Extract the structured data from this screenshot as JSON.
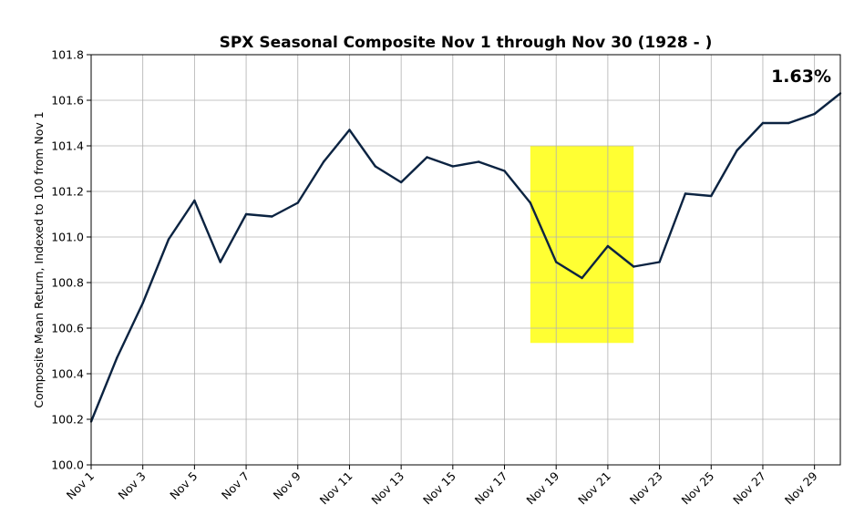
{
  "chart_data": {
    "type": "line",
    "title": "SPX Seasonal Composite Nov 1 through Nov 30 (1928 - )",
    "xlabel": "",
    "ylabel": "Composite Mean Return, Indexed to 100 from Nov 1",
    "x": [
      1,
      2,
      3,
      4,
      5,
      6,
      7,
      8,
      9,
      10,
      11,
      12,
      13,
      14,
      15,
      16,
      17,
      18,
      19,
      20,
      21,
      22,
      23,
      24,
      25,
      26,
      27,
      28,
      29,
      30
    ],
    "xlim": [
      1,
      30
    ],
    "xticks": [
      1,
      3,
      5,
      7,
      9,
      11,
      13,
      15,
      17,
      19,
      21,
      23,
      25,
      27,
      29
    ],
    "xtick_labels": [
      "Nov 1",
      "Nov 3",
      "Nov 5",
      "Nov 7",
      "Nov 9",
      "Nov 11",
      "Nov 13",
      "Nov 15",
      "Nov 17",
      "Nov 19",
      "Nov 21",
      "Nov 23",
      "Nov 25",
      "Nov 27",
      "Nov 29"
    ],
    "ylim": [
      100.0,
      101.8
    ],
    "yticks": [
      100.0,
      100.2,
      100.4,
      100.6,
      100.8,
      101.0,
      101.2,
      101.4,
      101.6,
      101.8
    ],
    "ytick_labels": [
      "100.0",
      "100.2",
      "100.4",
      "100.6",
      "100.8",
      "101.0",
      "101.2",
      "101.4",
      "101.6",
      "101.8"
    ],
    "grid": true,
    "series": [
      {
        "name": "SPX Seasonal Composite",
        "color": "#0b2341",
        "values": [
          100.19,
          100.47,
          100.71,
          100.99,
          101.16,
          100.89,
          101.1,
          101.09,
          101.15,
          101.33,
          101.47,
          101.31,
          101.24,
          101.35,
          101.31,
          101.33,
          101.29,
          101.15,
          100.89,
          100.82,
          100.96,
          100.87,
          100.89,
          101.19,
          101.18,
          101.38,
          101.5,
          101.5,
          101.54,
          101.63
        ]
      }
    ],
    "highlight": {
      "x_start": 18,
      "x_end": 22,
      "y_start": 100.535,
      "y_end": 101.4,
      "color": "#ffff33"
    },
    "annotation": {
      "text": "1.63%",
      "position": "top-right"
    }
  }
}
